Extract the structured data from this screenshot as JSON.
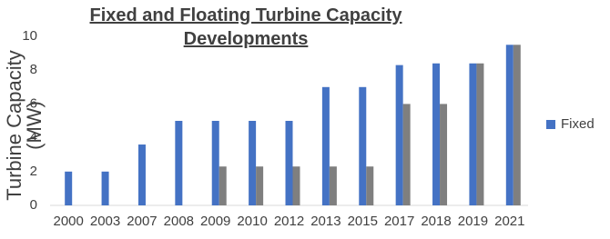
{
  "chart_data": {
    "type": "bar",
    "title": "Fixed and Floating Turbine Capacity Developments",
    "y_label": "Turbine Capacity (MW)",
    "categories": [
      "2000",
      "2003",
      "2007",
      "2008",
      "2009",
      "2010",
      "2012",
      "2013",
      "2015",
      "2017",
      "2018",
      "2019",
      "2021"
    ],
    "series": [
      {
        "name": "Fixed",
        "color": "#4472c4",
        "values": [
          2,
          2,
          3.6,
          5,
          5,
          5,
          5,
          7,
          7,
          8.3,
          8.4,
          8.4,
          9.5
        ]
      },
      {
        "color": "#7f7f7f",
        "values": [
          null,
          null,
          null,
          null,
          2.3,
          2.3,
          2.3,
          2.3,
          2.3,
          6,
          6,
          8.4,
          9.5
        ]
      }
    ],
    "ylim": [
      0,
      10
    ],
    "yticks": [
      0,
      2,
      4,
      6,
      8,
      10
    ],
    "grid": false,
    "legend": "right"
  }
}
